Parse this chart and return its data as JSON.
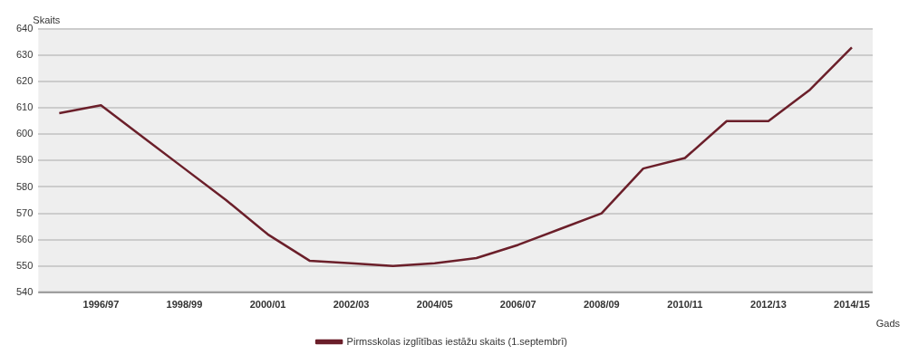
{
  "chart_data": {
    "type": "line",
    "ylabel": "Skaits",
    "xlabel": "Gads",
    "categories": [
      null,
      "1996/97",
      null,
      "1998/99",
      null,
      "2000/01",
      null,
      "2002/03",
      null,
      "2004/05",
      null,
      "2006/07",
      null,
      "2008/09",
      null,
      "2010/11",
      null,
      "2012/13",
      null,
      "2014/15"
    ],
    "series": [
      {
        "name": "Pirmsskolas izglītības iestāžu skaits (1.septembrī)",
        "color": "#6b1f2a",
        "values": [
          608,
          611,
          599,
          587,
          575,
          562,
          552,
          551,
          550,
          551,
          553,
          558,
          564,
          570,
          587,
          591,
          605,
          605,
          617,
          633
        ]
      }
    ],
    "ylim": [
      540,
      640
    ],
    "yticks": [
      540,
      550,
      560,
      570,
      580,
      590,
      600,
      610,
      620,
      630,
      640
    ],
    "grid": "y",
    "legend": "bottom",
    "marker": "none",
    "line_style": "solid"
  }
}
